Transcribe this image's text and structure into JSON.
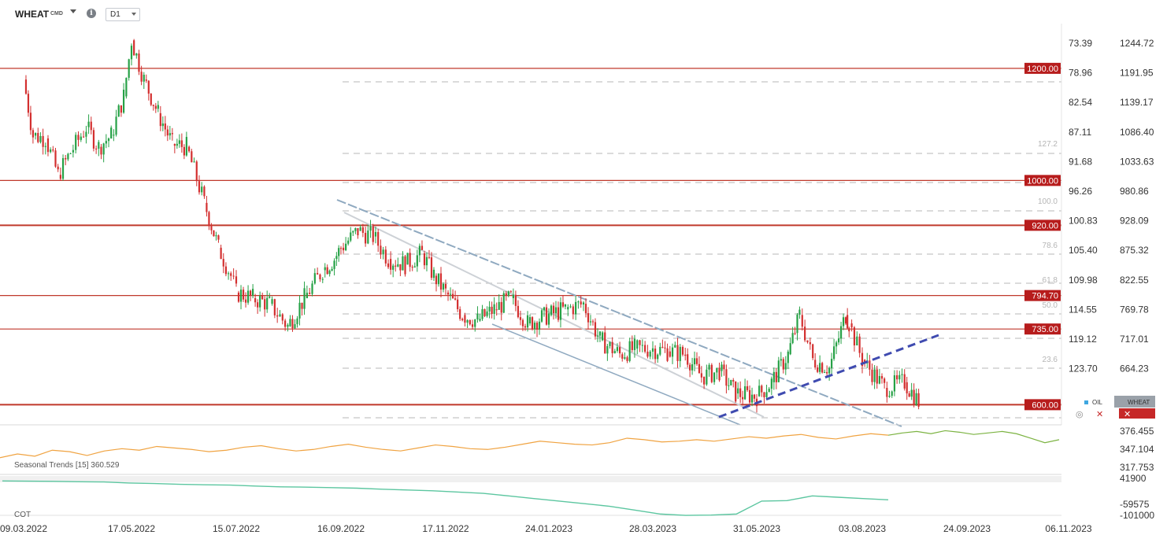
{
  "header": {
    "symbol": "WHEAT",
    "symbol_tag": "CMD",
    "timeframe": "D1",
    "info_icon": "info-icon",
    "dropdown_icon": "chevron-down-icon"
  },
  "colors": {
    "up_candle": "#26a146",
    "down_candle": "#d32f2f",
    "level_line": "#c0392b",
    "level_badge": "#b71c1c",
    "channel": "#8fa9c0",
    "trendline": "#3f4bb0",
    "oil_line": "#f0a341",
    "seasonal_line": "#7cb342",
    "cot_line": "#5cc6a0",
    "fib_line": "#cfcfcf",
    "inner_channel": "#cdd1d6"
  },
  "chart_data": [
    {
      "type": "candlestick",
      "title": "WHEAT CMD",
      "timeframe": "D1",
      "x_ticks": [
        "09.03.2022",
        "17.05.2022",
        "15.07.2022",
        "16.09.2022",
        "17.11.2022",
        "24.01.2023",
        "28.03.2023",
        "31.05.2023",
        "03.08.2023",
        "24.09.2023",
        "06.11.2023"
      ],
      "y_ticks_right": [
        "1244.72",
        "1191.95",
        "1139.17",
        "1086.40",
        "1033.63",
        "980.86",
        "928.09",
        "875.32",
        "822.55",
        "769.78",
        "717.01",
        "664.23"
      ],
      "y_ticks_oil": [
        "73.39",
        "78.96",
        "82.54",
        "87.11",
        "91.68",
        "96.26",
        "100.83",
        "105.40",
        "109.98",
        "114.55",
        "119.12",
        "123.70"
      ],
      "ylim": [
        600,
        1260
      ],
      "horizontal_levels": [
        "1200.00",
        "1000.00",
        "920.00",
        "794.70",
        "735.00",
        "600.00"
      ],
      "fibonacci_levels": [
        "127.2",
        "100.0",
        "78.6",
        "61.8",
        "50.0",
        "38.2",
        "23.6"
      ],
      "legend": [
        "OIL",
        "WHEAT"
      ],
      "close_points": [
        {
          "x": "09.03.2022",
          "y": 1180
        },
        {
          "x": "15.03.2022",
          "y": 1080
        },
        {
          "x": "23.03.2022",
          "y": 1075
        },
        {
          "x": "31.03.2022",
          "y": 1010
        },
        {
          "x": "08.04.2022",
          "y": 1050
        },
        {
          "x": "18.04.2022",
          "y": 1095
        },
        {
          "x": "26.04.2022",
          "y": 1060
        },
        {
          "x": "04.05.2022",
          "y": 1080
        },
        {
          "x": "12.05.2022",
          "y": 1150
        },
        {
          "x": "17.05.2022",
          "y": 1250
        },
        {
          "x": "24.05.2022",
          "y": 1180
        },
        {
          "x": "01.06.2022",
          "y": 1120
        },
        {
          "x": "09.06.2022",
          "y": 1065
        },
        {
          "x": "17.06.2022",
          "y": 1060
        },
        {
          "x": "27.06.2022",
          "y": 960
        },
        {
          "x": "05.07.2022",
          "y": 880
        },
        {
          "x": "12.07.2022",
          "y": 830
        },
        {
          "x": "15.07.2022",
          "y": 800
        },
        {
          "x": "25.07.2022",
          "y": 790
        },
        {
          "x": "04.08.2022",
          "y": 780
        },
        {
          "x": "15.08.2022",
          "y": 740
        },
        {
          "x": "25.08.2022",
          "y": 790
        },
        {
          "x": "05.09.2022",
          "y": 840
        },
        {
          "x": "12.09.2022",
          "y": 860
        },
        {
          "x": "16.09.2022",
          "y": 880
        },
        {
          "x": "26.09.2022",
          "y": 910
        },
        {
          "x": "05.10.2022",
          "y": 900
        },
        {
          "x": "14.10.2022",
          "y": 860
        },
        {
          "x": "24.10.2022",
          "y": 850
        },
        {
          "x": "03.11.2022",
          "y": 870
        },
        {
          "x": "10.11.2022",
          "y": 830
        },
        {
          "x": "17.11.2022",
          "y": 800
        },
        {
          "x": "28.11.2022",
          "y": 760
        },
        {
          "x": "08.12.2022",
          "y": 750
        },
        {
          "x": "19.12.2022",
          "y": 770
        },
        {
          "x": "30.12.2022",
          "y": 790
        },
        {
          "x": "10.01.2023",
          "y": 745
        },
        {
          "x": "24.01.2023",
          "y": 760
        },
        {
          "x": "03.02.2023",
          "y": 770
        },
        {
          "x": "14.02.2023",
          "y": 780
        },
        {
          "x": "24.02.2023",
          "y": 715
        },
        {
          "x": "08.03.2023",
          "y": 690
        },
        {
          "x": "17.03.2023",
          "y": 700
        },
        {
          "x": "28.03.2023",
          "y": 700
        },
        {
          "x": "06.04.2023",
          "y": 695
        },
        {
          "x": "17.04.2023",
          "y": 690
        },
        {
          "x": "27.04.2023",
          "y": 650
        },
        {
          "x": "08.05.2023",
          "y": 660
        },
        {
          "x": "18.05.2023",
          "y": 620
        },
        {
          "x": "31.05.2023",
          "y": 615
        },
        {
          "x": "09.06.2023",
          "y": 640
        },
        {
          "x": "19.06.2023",
          "y": 690
        },
        {
          "x": "26.06.2023",
          "y": 760
        },
        {
          "x": "04.07.2023",
          "y": 680
        },
        {
          "x": "14.07.2023",
          "y": 665
        },
        {
          "x": "24.07.2023",
          "y": 760
        },
        {
          "x": "26.07.2023",
          "y": 745
        },
        {
          "x": "03.08.2023",
          "y": 680
        },
        {
          "x": "14.08.2023",
          "y": 630
        },
        {
          "x": "24.08.2023",
          "y": 640
        },
        {
          "x": "31.08.2023",
          "y": 605
        }
      ]
    },
    {
      "type": "line",
      "title": "Seasonal Trends [15] 360.529",
      "y_ticks": [
        "376.455",
        "347.104",
        "317.753"
      ],
      "ylim": [
        317.753,
        376.455
      ],
      "series": [
        {
          "name": "",
          "values": [
            340,
            345,
            342,
            350,
            348,
            343,
            349,
            352,
            350,
            355,
            353,
            351,
            348,
            350,
            354,
            356,
            352,
            349,
            351,
            355,
            358,
            354,
            351,
            349,
            353,
            357,
            355,
            352,
            351,
            354,
            358,
            362,
            360,
            358,
            357,
            360,
            366,
            364,
            361,
            362,
            364,
            362,
            365,
            368,
            366,
            369,
            371,
            367,
            365,
            369,
            372,
            370
          ]
        },
        {
          "name": "",
          "values": [
            370,
            373,
            375,
            372,
            376,
            374,
            371,
            373,
            375,
            372,
            366,
            360,
            364
          ]
        }
      ]
    },
    {
      "type": "line",
      "title": "COT",
      "y_ticks": [
        "41900",
        "-59575",
        "-101000"
      ],
      "ylim": [
        -101000,
        41900
      ],
      "series": [
        {
          "name": "",
          "values": [
            38000,
            37000,
            36500,
            35000,
            34000,
            30000,
            28000,
            25000,
            23000,
            22000,
            18000,
            15000,
            14000,
            12000,
            10000,
            6000,
            3000,
            0,
            -5000,
            -10000,
            -20000,
            -30000,
            -40000,
            -50000,
            -60000,
            -75000,
            -90000,
            -95000,
            -94000,
            -90000,
            -40000,
            -38000,
            -20000,
            -25000,
            -30000,
            -35000
          ]
        }
      ]
    }
  ]
}
